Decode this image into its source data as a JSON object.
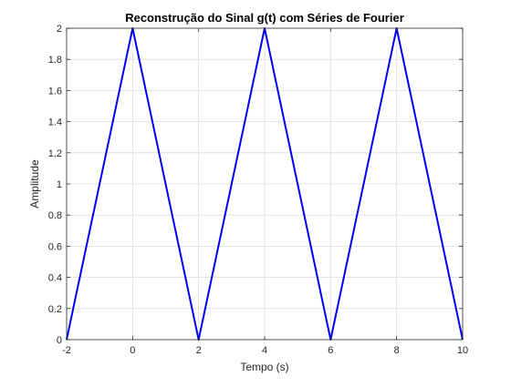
{
  "chart_data": {
    "type": "line",
    "title": "Reconstrução do Sinal g(t) com Séries de Fourier",
    "xlabel": "Tempo (s)",
    "ylabel": "Amplitude",
    "xlim": [
      -2,
      10
    ],
    "ylim": [
      0,
      2
    ],
    "xticks": [
      -2,
      0,
      2,
      4,
      6,
      8,
      10
    ],
    "xtick_labels": [
      "-2",
      "0",
      "2",
      "4",
      "6",
      "8",
      "10"
    ],
    "yticks": [
      0,
      0.2,
      0.4,
      0.6,
      0.8,
      1,
      1.2,
      1.4,
      1.6,
      1.8,
      2
    ],
    "ytick_labels": [
      "0",
      "0.2",
      "0.4",
      "0.6",
      "0.8",
      "1",
      "1.2",
      "1.4",
      "1.6",
      "1.8",
      "2"
    ],
    "grid": true,
    "series": [
      {
        "color": "#0000ff",
        "x": [
          -2,
          0,
          2,
          4,
          6,
          8,
          10
        ],
        "y": [
          0,
          2,
          0,
          2,
          0,
          2,
          0
        ]
      }
    ]
  }
}
